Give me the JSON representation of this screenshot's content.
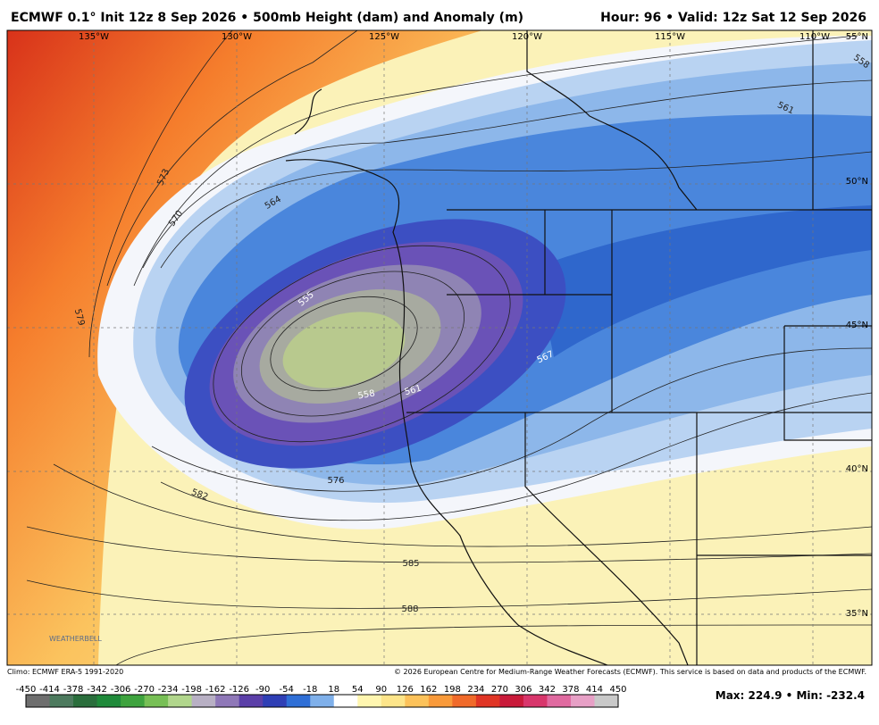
{
  "header": {
    "title": "ECMWF 0.1° Init 12z 8 Sep 2026 • 500mb Height (dam) and Anomaly (m)",
    "valid": "Hour: 96 • Valid: 12z Sat 12 Sep 2026"
  },
  "map": {
    "longitudes": [
      "135°W",
      "130°W",
      "125°W",
      "120°W",
      "115°W",
      "110°W"
    ],
    "latitudes": [
      "55°N",
      "50°N",
      "45°N",
      "40°N",
      "35°N"
    ],
    "contour_labels": [
      "558",
      "561",
      "564",
      "570",
      "573",
      "579",
      "555",
      "558",
      "561",
      "567",
      "576",
      "582",
      "585",
      "588"
    ],
    "logo": "WEATHERBELL"
  },
  "footer": {
    "climo": "Climo: ECMWF ERA-5 1991-2020",
    "credit": "© 2026 European Centre for Medium-Range Weather Forecasts (ECMWF). This service is based on data and products of the ECMWF.",
    "stats": "Max: 224.9 • Min: -232.4"
  },
  "colorbar": {
    "ticks": [
      -450,
      -414,
      -378,
      -342,
      -306,
      -270,
      -234,
      -198,
      -162,
      -126,
      -90,
      -54,
      -18,
      18,
      54,
      90,
      126,
      162,
      198,
      234,
      270,
      306,
      342,
      378,
      414,
      450
    ]
  }
}
